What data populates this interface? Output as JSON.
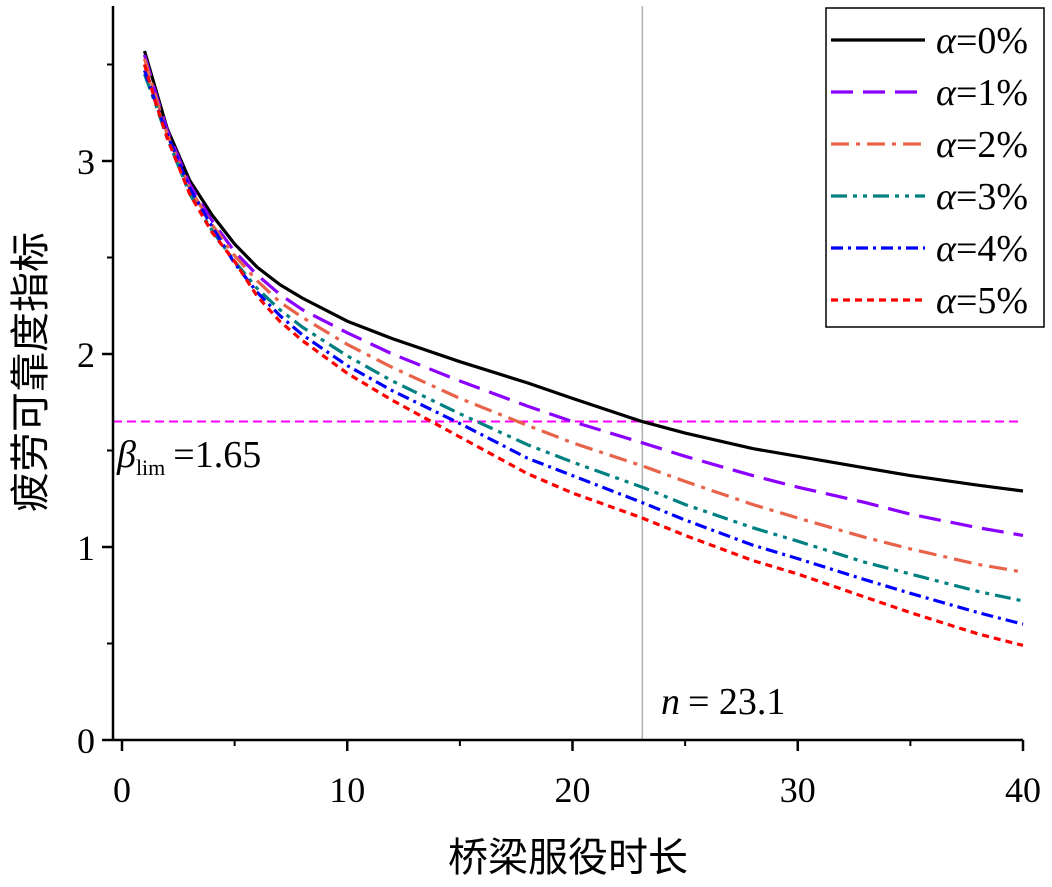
{
  "chart_data": {
    "type": "line",
    "xlabel": "桥梁服役时长",
    "ylabel": "疲劳可靠度指标",
    "xlim": [
      -0.5,
      40
    ],
    "ylim": [
      0,
      3.8
    ],
    "x_ticks": [
      0,
      10,
      20,
      30,
      40
    ],
    "y_ticks": [
      0,
      1,
      2,
      3
    ],
    "grid": false,
    "legend_position": "top-right",
    "x": [
      1,
      1.5,
      2,
      3,
      4,
      5,
      6,
      7,
      8,
      10,
      12,
      15,
      18,
      20,
      23.1,
      25,
      28,
      30,
      33,
      35,
      38,
      40
    ],
    "series": [
      {
        "name": "α=0%",
        "color": "#000000",
        "dash": "solid",
        "values": [
          3.57,
          3.37,
          3.17,
          2.9,
          2.72,
          2.57,
          2.45,
          2.36,
          2.29,
          2.17,
          2.08,
          1.96,
          1.85,
          1.77,
          1.65,
          1.59,
          1.51,
          1.47,
          1.41,
          1.37,
          1.32,
          1.29
        ]
      },
      {
        "name": "α=1%",
        "color": "#8B00FF",
        "dash": "long-dash",
        "values": [
          3.55,
          3.35,
          3.16,
          2.88,
          2.69,
          2.53,
          2.41,
          2.31,
          2.23,
          2.11,
          2.0,
          1.86,
          1.73,
          1.65,
          1.54,
          1.47,
          1.37,
          1.31,
          1.23,
          1.17,
          1.1,
          1.06
        ]
      },
      {
        "name": "α=2%",
        "color": "#E8634A",
        "dash": "dash-dot",
        "values": [
          3.53,
          3.33,
          3.14,
          2.86,
          2.67,
          2.51,
          2.38,
          2.27,
          2.19,
          2.05,
          1.93,
          1.77,
          1.63,
          1.54,
          1.42,
          1.34,
          1.22,
          1.15,
          1.05,
          0.99,
          0.91,
          0.87
        ]
      },
      {
        "name": "α=3%",
        "color": "#008080",
        "dash": "dash-dot-dot",
        "values": [
          3.45,
          3.29,
          3.12,
          2.83,
          2.64,
          2.48,
          2.34,
          2.23,
          2.14,
          1.99,
          1.86,
          1.69,
          1.53,
          1.44,
          1.31,
          1.22,
          1.1,
          1.03,
          0.92,
          0.86,
          0.77,
          0.72
        ]
      },
      {
        "name": "α=4%",
        "color": "#0000FF",
        "dash": "dash-dot-dense",
        "values": [
          3.47,
          3.3,
          3.14,
          2.86,
          2.66,
          2.47,
          2.32,
          2.2,
          2.1,
          1.94,
          1.81,
          1.64,
          1.46,
          1.37,
          1.23,
          1.14,
          1.01,
          0.94,
          0.83,
          0.76,
          0.66,
          0.6
        ]
      },
      {
        "name": "α=5%",
        "color": "#FF0000",
        "dash": "short-dash",
        "values": [
          3.5,
          3.3,
          3.12,
          2.83,
          2.63,
          2.48,
          2.3,
          2.17,
          2.07,
          1.9,
          1.76,
          1.57,
          1.38,
          1.28,
          1.15,
          1.06,
          0.93,
          0.86,
          0.74,
          0.66,
          0.55,
          0.49
        ]
      }
    ],
    "reference_lines": [
      {
        "orientation": "horizontal",
        "value": 1.65,
        "color": "#FF00FF",
        "style": "dashed"
      },
      {
        "orientation": "vertical",
        "value": 23.1,
        "color": "#B0B0B0",
        "style": "solid"
      }
    ],
    "annotations": [
      {
        "id": "beta",
        "symbol": "β",
        "subscript": "lim",
        "text": "=1.65"
      },
      {
        "id": "n",
        "symbol": "n",
        "text": "= 23.1"
      }
    ]
  }
}
